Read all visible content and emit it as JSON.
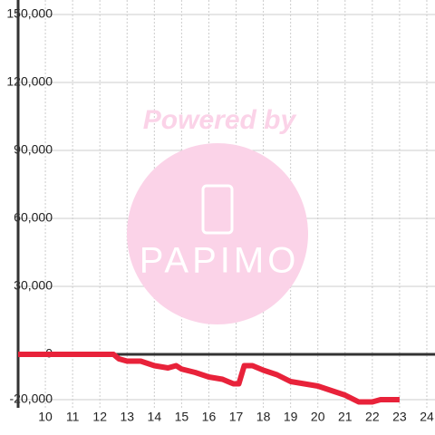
{
  "chart_data": {
    "type": "line",
    "watermark": {
      "line1": "Powered by",
      "line2": "PAPIMO"
    },
    "x": [
      9,
      12.5,
      12.7,
      13,
      13.5,
      14,
      14.5,
      14.8,
      15,
      15.5,
      16,
      16.5,
      16.9,
      17.1,
      17.3,
      17.6,
      18,
      18.5,
      19,
      19.5,
      20,
      20.5,
      21,
      21.5,
      22,
      22.3,
      23
    ],
    "series": [
      {
        "color": "#e8223a",
        "values": [
          0,
          0,
          -2000,
          -3000,
          -3000,
          -5000,
          -6000,
          -5000,
          -6500,
          -8000,
          -10000,
          -11000,
          -13000,
          -13000,
          -5000,
          -5000,
          -7000,
          -9000,
          -12000,
          -13000,
          -14000,
          -16000,
          -18000,
          -21000,
          -21000,
          -20000,
          -20000
        ]
      }
    ],
    "xlim": [
      9,
      24.3
    ],
    "xticks": [
      10,
      11,
      12,
      13,
      14,
      15,
      16,
      17,
      18,
      19,
      20,
      21,
      22,
      23,
      24
    ],
    "ylim": [
      -23600,
      156400
    ],
    "yticks": [
      {
        "value": -20000,
        "label": "-20,000"
      },
      0,
      {
        "value": 30000,
        "label": "30,000"
      },
      {
        "value": 60000,
        "label": "60,000"
      },
      {
        "value": 90000,
        "label": "90,000"
      },
      {
        "value": 120000,
        "label": "120,000"
      },
      {
        "value": 150000,
        "label": "150,000"
      }
    ],
    "grid": true
  }
}
